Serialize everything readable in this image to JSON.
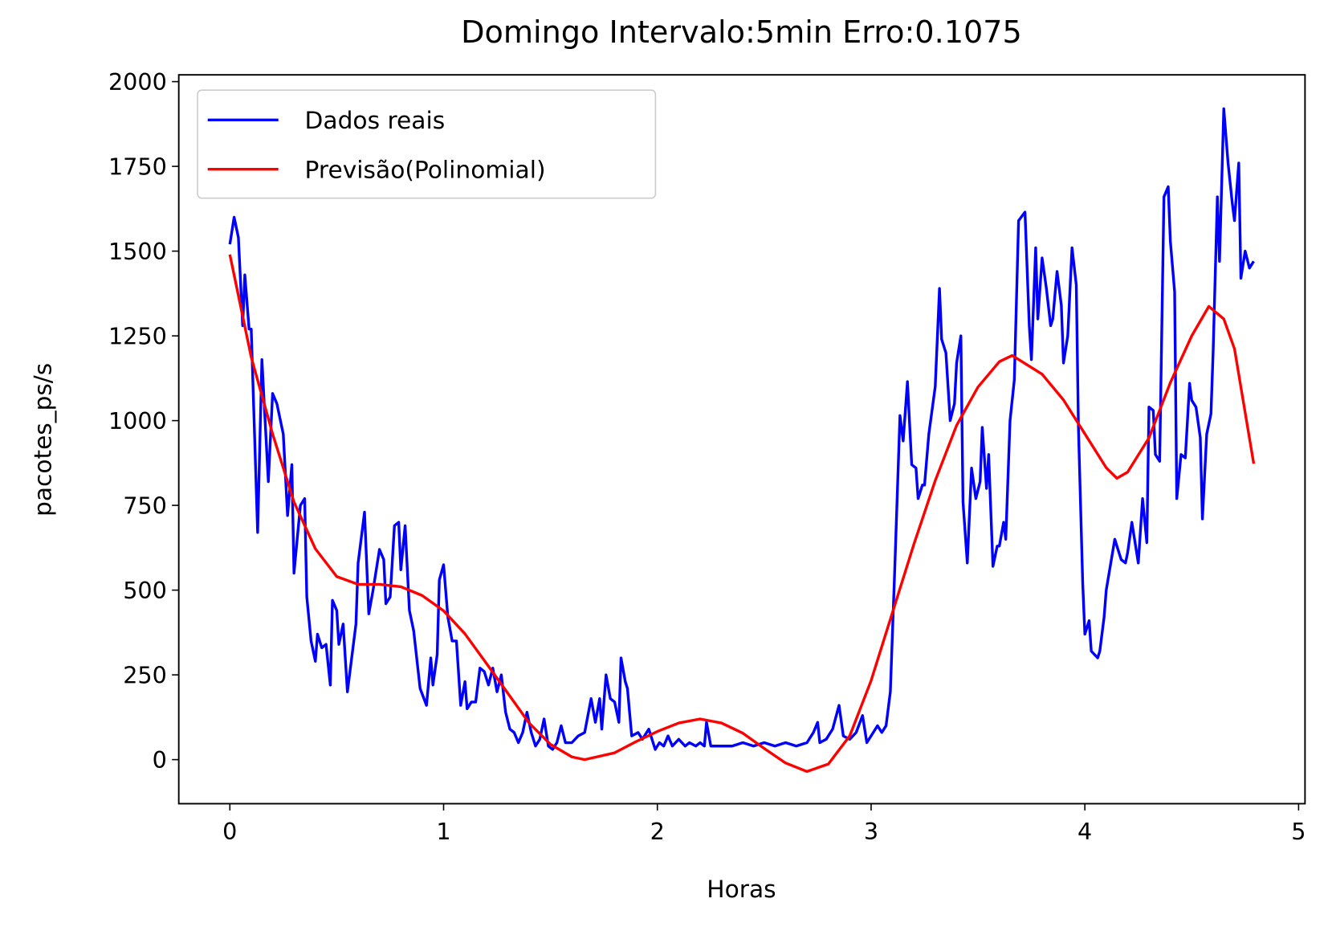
{
  "chart_data": {
    "type": "line",
    "title": "Domingo Intervalo:5min Erro:0.1075",
    "x_label": "Horas",
    "y_label": "pacotes_ps/s",
    "xlim": [
      -0.239,
      5.03
    ],
    "ylim": [
      -130,
      2020
    ],
    "xticks": [
      0,
      1,
      2,
      3,
      4,
      5
    ],
    "yticks": [
      0,
      250,
      500,
      750,
      1000,
      1250,
      1500,
      1750,
      2000
    ],
    "legend": "upper left",
    "grid": false,
    "series": [
      {
        "name": "Dados reais",
        "color": "#0000ff",
        "x": [
          0,
          0.02,
          0.04,
          0.06,
          0.07,
          0.09,
          0.1,
          0.13,
          0.15,
          0.18,
          0.2,
          0.22,
          0.25,
          0.27,
          0.29,
          0.3,
          0.33,
          0.35,
          0.36,
          0.38,
          0.4,
          0.41,
          0.43,
          0.45,
          0.47,
          0.48,
          0.5,
          0.51,
          0.53,
          0.55,
          0.57,
          0.59,
          0.6,
          0.63,
          0.65,
          0.67,
          0.7,
          0.72,
          0.73,
          0.75,
          0.77,
          0.79,
          0.8,
          0.82,
          0.84,
          0.86,
          0.89,
          0.92,
          0.94,
          0.95,
          0.97,
          0.98,
          1.0,
          1.02,
          1.04,
          1.06,
          1.08,
          1.1,
          1.11,
          1.13,
          1.15,
          1.17,
          1.19,
          1.21,
          1.23,
          1.25,
          1.27,
          1.29,
          1.31,
          1.33,
          1.35,
          1.37,
          1.39,
          1.41,
          1.43,
          1.45,
          1.47,
          1.49,
          1.51,
          1.53,
          1.55,
          1.57,
          1.6,
          1.63,
          1.66,
          1.69,
          1.71,
          1.73,
          1.74,
          1.76,
          1.78,
          1.8,
          1.82,
          1.83,
          1.85,
          1.86,
          1.88,
          1.91,
          1.93,
          1.96,
          1.99,
          2.01,
          2.03,
          2.05,
          2.07,
          2.1,
          2.13,
          2.15,
          2.18,
          2.2,
          2.22,
          2.23,
          2.25,
          2.3,
          2.35,
          2.4,
          2.45,
          2.5,
          2.55,
          2.6,
          2.65,
          2.7,
          2.73,
          2.75,
          2.76,
          2.79,
          2.82,
          2.85,
          2.87,
          2.9,
          2.93,
          2.96,
          2.98,
          3.01,
          3.03,
          3.05,
          3.07,
          3.09,
          3.11,
          3.135,
          3.15,
          3.17,
          3.19,
          3.21,
          3.22,
          3.24,
          3.25,
          3.27,
          3.3,
          3.32,
          3.33,
          3.35,
          3.37,
          3.39,
          3.4,
          3.42,
          3.43,
          3.45,
          3.47,
          3.49,
          3.51,
          3.52,
          3.54,
          3.55,
          3.57,
          3.59,
          3.6,
          3.62,
          3.63,
          3.65,
          3.67,
          3.69,
          3.72,
          3.74,
          3.75,
          3.77,
          3.78,
          3.8,
          3.82,
          3.84,
          3.85,
          3.87,
          3.89,
          3.9,
          3.92,
          3.94,
          3.96,
          3.97,
          3.99,
          4.0,
          4.02,
          4.03,
          4.06,
          4.07,
          4.09,
          4.1,
          4.14,
          4.16,
          4.17,
          4.19,
          4.2,
          4.22,
          4.25,
          4.27,
          4.29,
          4.3,
          4.32,
          4.33,
          4.35,
          4.37,
          4.39,
          4.4,
          4.42,
          4.43,
          4.45,
          4.47,
          4.49,
          4.5,
          4.52,
          4.54,
          4.55,
          4.57,
          4.59,
          4.6,
          4.62,
          4.63,
          4.65,
          4.67,
          4.69,
          4.7,
          4.72,
          4.73,
          4.75,
          4.77,
          4.79
        ],
        "values": [
          1520,
          1600,
          1540,
          1280,
          1430,
          1270,
          1270,
          670,
          1180,
          820,
          1080,
          1050,
          960,
          720,
          870,
          550,
          750,
          770,
          480,
          350,
          290,
          370,
          330,
          340,
          220,
          470,
          440,
          340,
          400,
          200,
          300,
          400,
          580,
          730,
          430,
          500,
          620,
          590,
          460,
          480,
          690,
          700,
          560,
          690,
          440,
          380,
          210,
          160,
          300,
          220,
          310,
          530,
          575,
          420,
          350,
          350,
          160,
          230,
          150,
          170,
          170,
          270,
          260,
          220,
          270,
          200,
          250,
          140,
          90,
          80,
          50,
          80,
          140,
          80,
          40,
          60,
          120,
          40,
          30,
          50,
          100,
          50,
          50,
          70,
          80,
          180,
          110,
          180,
          90,
          250,
          180,
          170,
          110,
          300,
          230,
          210,
          70,
          80,
          60,
          90,
          30,
          50,
          40,
          70,
          40,
          60,
          40,
          50,
          40,
          50,
          40,
          110,
          40,
          40,
          40,
          50,
          40,
          50,
          40,
          50,
          40,
          50,
          80,
          110,
          50,
          60,
          90,
          160,
          70,
          60,
          80,
          130,
          50,
          80,
          100,
          80,
          100,
          200,
          550,
          1015,
          940,
          1115,
          870,
          860,
          770,
          810,
          810,
          960,
          1100,
          1390,
          1240,
          1200,
          1000,
          1050,
          1170,
          1250,
          760,
          580,
          860,
          770,
          820,
          980,
          800,
          900,
          570,
          630,
          630,
          700,
          650,
          1000,
          1120,
          1590,
          1615,
          1280,
          1180,
          1510,
          1300,
          1480,
          1390,
          1280,
          1300,
          1440,
          1340,
          1170,
          1250,
          1510,
          1400,
          980,
          520,
          370,
          410,
          320,
          300,
          320,
          420,
          500,
          650,
          610,
          590,
          580,
          610,
          700,
          580,
          770,
          640,
          1040,
          1030,
          900,
          880,
          1660,
          1690,
          1530,
          1380,
          770,
          900,
          890,
          1110,
          1060,
          1040,
          950,
          710,
          960,
          1020,
          1200,
          1660,
          1470,
          1920,
          1760,
          1640,
          1590,
          1760,
          1420,
          1500,
          1450,
          1470
        ]
      },
      {
        "name": "Previsão(Polinomial)",
        "color": "#ff0000",
        "x": [
          0,
          0.1,
          0.2,
          0.3,
          0.4,
          0.5,
          0.6,
          0.7,
          0.8,
          0.9,
          1.0,
          1.1,
          1.2,
          1.3,
          1.4,
          1.5,
          1.6,
          1.66,
          1.8,
          1.9,
          2.0,
          2.1,
          2.2,
          2.3,
          2.4,
          2.5,
          2.6,
          2.7,
          2.8,
          2.9,
          3.0,
          3.1,
          3.2,
          3.3,
          3.4,
          3.5,
          3.6,
          3.66,
          3.8,
          3.9,
          4.0,
          4.1,
          4.15,
          4.2,
          4.3,
          4.4,
          4.5,
          4.58,
          4.65,
          4.7,
          4.79
        ],
        "values": [
          1490,
          1187,
          961,
          760,
          622,
          540,
          517,
          517,
          510,
          484,
          439,
          371,
          284,
          196,
          108,
          45,
          8,
          0,
          20,
          53,
          83,
          108,
          120,
          108,
          78,
          33,
          -10,
          -35,
          -13,
          70,
          233,
          434,
          635,
          823,
          986,
          1099,
          1174,
          1192,
          1137,
          1061,
          961,
          861,
          830,
          848,
          949,
          1112,
          1250,
          1337,
          1300,
          1212,
          873
        ]
      }
    ]
  }
}
